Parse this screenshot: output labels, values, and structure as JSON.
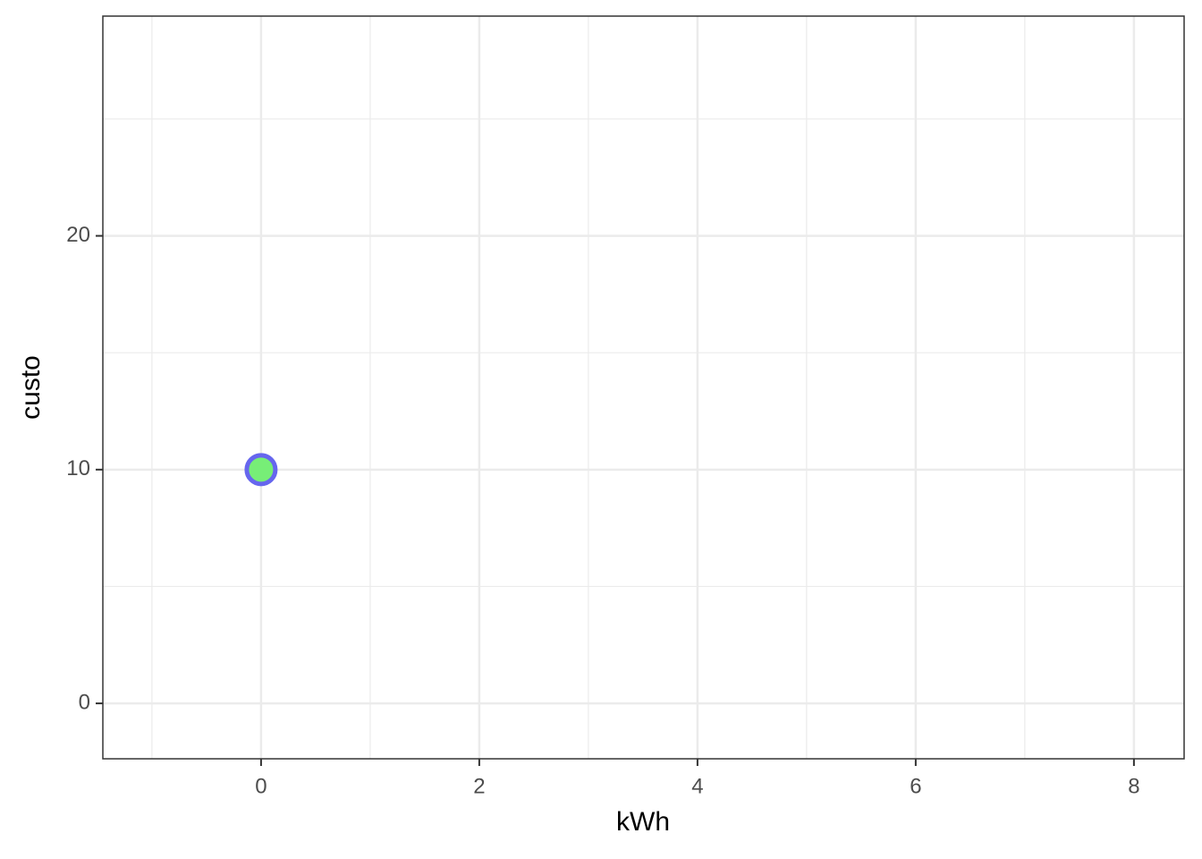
{
  "chart_data": {
    "type": "scatter",
    "xlabel": "kWh",
    "ylabel": "custo",
    "x": [
      0
    ],
    "values": [
      10
    ],
    "color": "#77ee77",
    "edgecolor": "#6666ee",
    "xlim": [
      -1.45,
      8.46
    ],
    "xticks": [
      0,
      2,
      4,
      6,
      8
    ],
    "ylim": [
      -2.37,
      29.4
    ],
    "yticks": [
      0,
      10,
      20
    ],
    "grid": true
  }
}
